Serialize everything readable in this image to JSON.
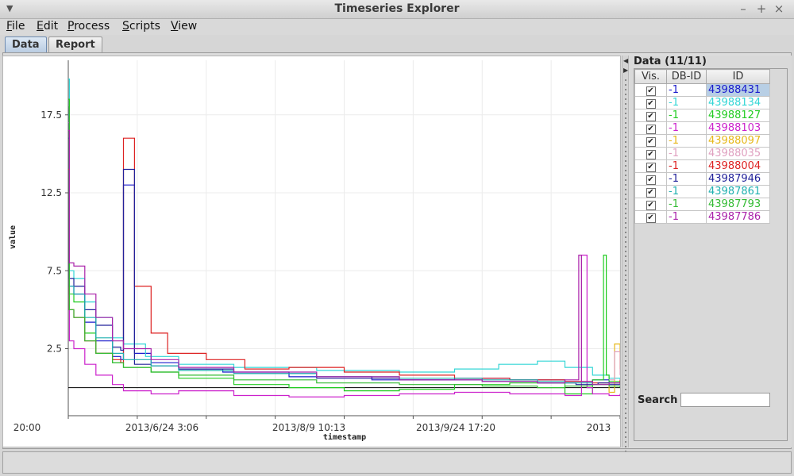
{
  "window": {
    "title": "Timeseries Explorer",
    "controls": [
      "–",
      "+",
      "×"
    ]
  },
  "menubar": {
    "items": [
      {
        "label": "File"
      },
      {
        "label": "Edit"
      },
      {
        "label": "Process"
      },
      {
        "label": "Scripts"
      },
      {
        "label": "View"
      }
    ]
  },
  "tabs": [
    {
      "label": "Data",
      "active": true
    },
    {
      "label": "Report",
      "active": false
    }
  ],
  "chart_data": {
    "type": "line",
    "xlabel": "timestamp",
    "ylabel": "value",
    "x_tick_labels": [
      "20:00",
      "2013/6/24 3:06",
      "2013/8/9 10:13",
      "2013/9/24 17:20",
      "2013"
    ],
    "y_tick_labels": [
      "2.5",
      "7.5",
      "12.5",
      "17.5"
    ],
    "y_ticks": [
      2.5,
      7.5,
      12.5,
      17.5
    ],
    "ylim": [
      -1.8,
      21
    ],
    "xlim": [
      0,
      100
    ],
    "zero_line": 0,
    "grid": true,
    "series": [
      {
        "color": "#1a1acc",
        "x": [
          0,
          0.2,
          1,
          3,
          5,
          8,
          9.5,
          10,
          12,
          15,
          20,
          28,
          40,
          55,
          70,
          80,
          90,
          95,
          98,
          100
        ],
        "values": [
          18,
          6.5,
          6,
          4.2,
          3,
          2,
          1.8,
          13,
          2.2,
          1.6,
          1.2,
          1,
          0.7,
          0.5,
          0.6,
          0.5,
          0.4,
          0.5,
          0.3,
          0.4
        ]
      },
      {
        "color": "#33d6d6",
        "x": [
          0,
          0.2,
          1,
          3,
          5,
          8,
          10,
          14,
          20,
          30,
          45,
          60,
          70,
          78,
          85,
          90,
          95,
          98,
          100
        ],
        "values": [
          19.8,
          7.5,
          7,
          5.5,
          4.5,
          3.2,
          2.8,
          2,
          1.5,
          1.3,
          1.1,
          1,
          1.2,
          1.5,
          1.7,
          1.3,
          0.8,
          0.6,
          0.5
        ]
      },
      {
        "color": "#22cc22",
        "x": [
          0,
          0.2,
          1,
          3,
          5,
          8,
          10,
          15,
          20,
          30,
          40,
          50,
          60,
          70,
          80,
          90,
          95,
          97,
          97.5,
          98,
          100
        ],
        "values": [
          18.5,
          6,
          5.5,
          3.5,
          2.2,
          1.6,
          1.3,
          1,
          0.6,
          0.2,
          0,
          -0.2,
          -0.1,
          0.2,
          0.3,
          -0.4,
          0.5,
          8.5,
          0.8,
          0.4,
          0.2
        ]
      },
      {
        "color": "#cc22cc",
        "x": [
          0,
          0.2,
          1,
          3,
          5,
          8,
          10,
          15,
          20,
          30,
          40,
          50,
          60,
          70,
          80,
          90,
          93,
          94,
          95,
          98,
          100
        ],
        "values": [
          17,
          3,
          2.5,
          1.5,
          0.8,
          0.2,
          -0.2,
          -0.4,
          -0.2,
          -0.5,
          -0.6,
          -0.5,
          -0.4,
          -0.3,
          -0.4,
          -0.5,
          8.5,
          0,
          -0.4,
          -0.5,
          -0.4
        ]
      },
      {
        "color": "#e6b81a",
        "x": [
          97,
          98,
          99,
          100
        ],
        "values": [
          0.2,
          -0.3,
          2.8,
          1.2
        ]
      },
      {
        "color": "#e0a0c0",
        "x": [
          98,
          99,
          100
        ],
        "values": [
          0.5,
          2.3,
          0.8
        ]
      },
      {
        "color": "#dd2222",
        "x": [
          0,
          0.2,
          1,
          3,
          5,
          8,
          9.5,
          10,
          12,
          15,
          18,
          25,
          32,
          40,
          50,
          60,
          70,
          80,
          90,
          95,
          100
        ],
        "values": [
          14,
          5,
          4.5,
          3,
          2.2,
          1.8,
          1.6,
          16,
          6.5,
          3.5,
          2.2,
          1.8,
          1.2,
          1.3,
          1,
          0.8,
          0.6,
          0.5,
          0.4,
          0.3,
          0.5
        ]
      },
      {
        "color": "#22229a",
        "x": [
          0,
          0.2,
          1,
          3,
          5,
          8,
          9.5,
          10,
          12,
          15,
          20,
          30,
          45,
          60,
          75,
          85,
          92,
          96,
          98,
          100
        ],
        "values": [
          16,
          7,
          6.5,
          5,
          4,
          2.6,
          2.4,
          14,
          1.5,
          1.4,
          1.2,
          0.9,
          0.6,
          0.5,
          0.4,
          0.3,
          0.2,
          0.3,
          0.2,
          0.2
        ]
      },
      {
        "color": "#20b0b0",
        "x": [
          0,
          0.2,
          1,
          3,
          5,
          8,
          10,
          15,
          20,
          30,
          45,
          60,
          75,
          85,
          90,
          95,
          98,
          100
        ],
        "values": [
          17.5,
          6.5,
          6,
          4.5,
          3.2,
          2.2,
          1.8,
          1.4,
          1.1,
          0.9,
          0.7,
          0.6,
          0.5,
          0.4,
          0.3,
          0.2,
          0.3,
          0.3
        ]
      },
      {
        "color": "#33bb33",
        "x": [
          0,
          0.2,
          1,
          3,
          5,
          8,
          10,
          15,
          20,
          30,
          45,
          60,
          75,
          85,
          90,
          95,
          98,
          100
        ],
        "values": [
          18,
          5,
          4.5,
          3,
          2.2,
          1.6,
          1.3,
          1,
          0.8,
          0.5,
          0.3,
          0.2,
          0.1,
          0,
          0.1,
          0.2,
          0.1,
          0
        ]
      },
      {
        "color": "#aa22aa",
        "x": [
          0,
          0.2,
          1,
          3,
          5,
          8,
          10,
          15,
          20,
          30,
          45,
          60,
          75,
          85,
          90,
          92.5,
          93,
          95,
          98,
          100
        ],
        "values": [
          16.5,
          8,
          7.8,
          6,
          4.5,
          3,
          2.5,
          1.8,
          1.3,
          1,
          0.7,
          0.5,
          0.4,
          0.3,
          0.5,
          8.5,
          0.4,
          0.2,
          0.3,
          0.2
        ]
      }
    ]
  },
  "data_panel": {
    "title": "Data (11/11)",
    "columns": [
      "Vis.",
      "DB-ID",
      "ID"
    ],
    "rows": [
      {
        "vis": "✔",
        "dbid": "-1",
        "id": "43988431",
        "color": "#1a1acc",
        "selected": true
      },
      {
        "vis": "✔",
        "dbid": "-1",
        "id": "43988134",
        "color": "#33d6d6",
        "selected": false
      },
      {
        "vis": "✔",
        "dbid": "-1",
        "id": "43988127",
        "color": "#22cc22",
        "selected": false
      },
      {
        "vis": "✔",
        "dbid": "-1",
        "id": "43988103",
        "color": "#cc22cc",
        "selected": false
      },
      {
        "vis": "✔",
        "dbid": "-1",
        "id": "43988097",
        "color": "#e6b81a",
        "selected": false
      },
      {
        "vis": "✔",
        "dbid": "-1",
        "id": "43988035",
        "color": "#e0a0c0",
        "selected": false
      },
      {
        "vis": "✔",
        "dbid": "-1",
        "id": "43988004",
        "color": "#dd2222",
        "selected": false
      },
      {
        "vis": "✔",
        "dbid": "-1",
        "id": "43987946",
        "color": "#22229a",
        "selected": false
      },
      {
        "vis": "✔",
        "dbid": "-1",
        "id": "43987861",
        "color": "#20b0b0",
        "selected": false
      },
      {
        "vis": "✔",
        "dbid": "-1",
        "id": "43987793",
        "color": "#33bb33",
        "selected": false
      },
      {
        "vis": "✔",
        "dbid": "-1",
        "id": "43987786",
        "color": "#aa22aa",
        "selected": false
      }
    ],
    "search": {
      "label": "Search",
      "value": ""
    }
  }
}
